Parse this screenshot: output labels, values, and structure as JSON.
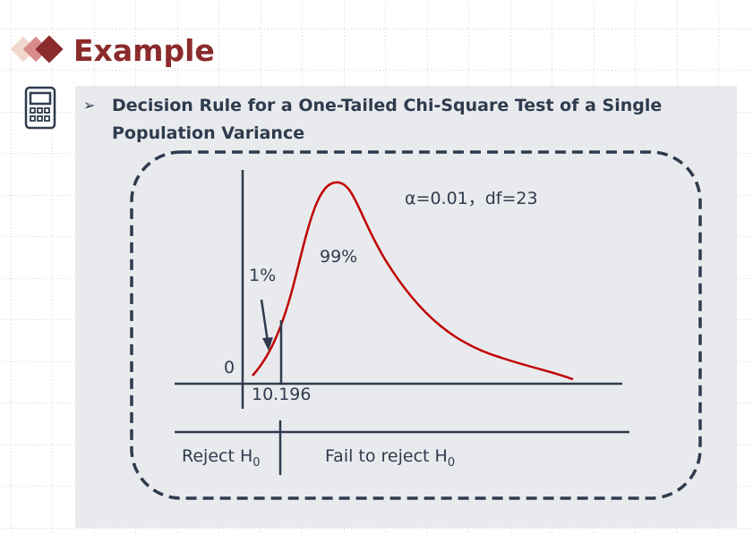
{
  "header": {
    "title": "Example"
  },
  "heading": {
    "lines": [
      "Decision Rule for a One-Tailed Chi-Square Test of a Single",
      "Population Variance"
    ]
  },
  "diagram": {
    "params": "α=0.01，df=23",
    "area_main": "99%",
    "area_tail": "1%",
    "origin": "0",
    "critical": "10.196",
    "reject": {
      "text": "Reject H",
      "sub": "0"
    },
    "fail": {
      "text": "Fail to reject H",
      "sub": "0"
    }
  }
}
